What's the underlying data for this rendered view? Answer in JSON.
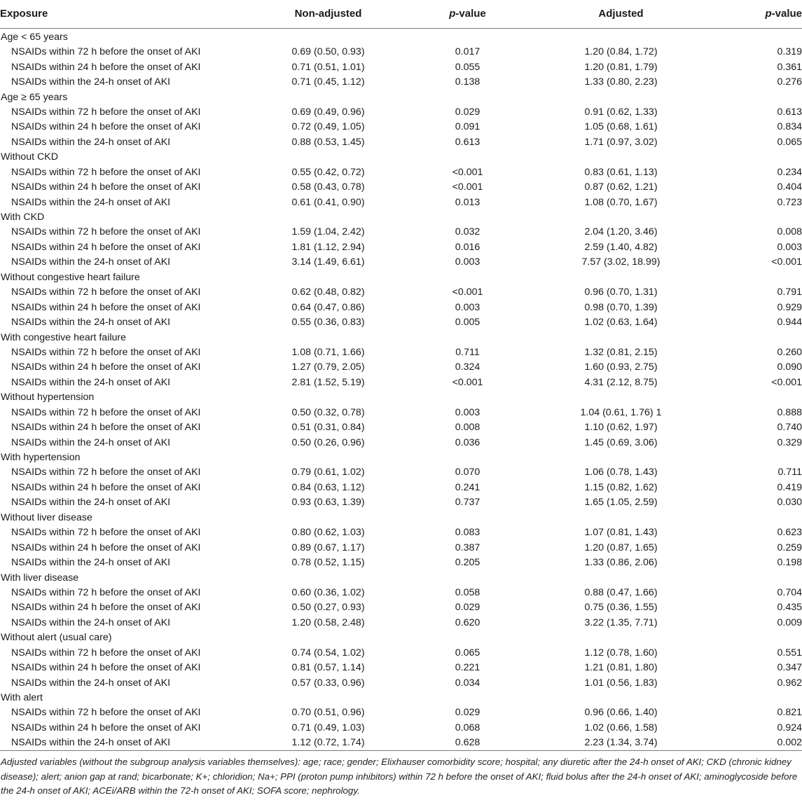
{
  "header": {
    "exposure": "Exposure",
    "non_adjusted": "Non-adjusted",
    "p_value_prefix": "p",
    "p_value_suffix": "-value",
    "adjusted": "Adjusted"
  },
  "groups": [
    {
      "label": "Age < 65 years",
      "rows": [
        {
          "exposure": "NSAIDs within 72 h before the onset of AKI",
          "non_adjusted": "0.69 (0.50, 0.93)",
          "p1": "0.017",
          "adjusted": "1.20 (0.84, 1.72)",
          "p2": "0.319"
        },
        {
          "exposure": "NSAIDs within 24 h before the onset of AKI",
          "non_adjusted": "0.71 (0.51, 1.01)",
          "p1": "0.055",
          "adjusted": "1.20 (0.81, 1.79)",
          "p2": "0.361"
        },
        {
          "exposure": "NSAIDs within the 24-h onset of AKI",
          "non_adjusted": "0.71 (0.45, 1.12)",
          "p1": "0.138",
          "adjusted": "1.33 (0.80, 2.23)",
          "p2": "0.276"
        }
      ]
    },
    {
      "label": "Age ≥ 65 years",
      "rows": [
        {
          "exposure": "NSAIDs within 72 h before the onset of AKI",
          "non_adjusted": "0.69 (0.49, 0.96)",
          "p1": "0.029",
          "adjusted": "0.91 (0.62, 1.33)",
          "p2": "0.613"
        },
        {
          "exposure": "NSAIDs within 24 h before the onset of AKI",
          "non_adjusted": "0.72 (0.49, 1.05)",
          "p1": "0.091",
          "adjusted": "1.05 (0.68, 1.61)",
          "p2": "0.834"
        },
        {
          "exposure": "NSAIDs within the 24-h onset of AKI",
          "non_adjusted": "0.88 (0.53, 1.45)",
          "p1": "0.613",
          "adjusted": "1.71 (0.97, 3.02)",
          "p2": "0.065"
        }
      ]
    },
    {
      "label": "Without CKD",
      "rows": [
        {
          "exposure": "NSAIDs within 72 h before the onset of AKI",
          "non_adjusted": "0.55 (0.42, 0.72)",
          "p1": "<0.001",
          "adjusted": "0.83 (0.61, 1.13)",
          "p2": "0.234"
        },
        {
          "exposure": "NSAIDs within 24 h before the onset of AKI",
          "non_adjusted": "0.58 (0.43, 0.78)",
          "p1": "<0.001",
          "adjusted": "0.87 (0.62, 1.21)",
          "p2": "0.404"
        },
        {
          "exposure": "NSAIDs within the 24-h onset of AKI",
          "non_adjusted": "0.61 (0.41, 0.90)",
          "p1": "0.013",
          "adjusted": "1.08 (0.70, 1.67)",
          "p2": "0.723"
        }
      ]
    },
    {
      "label": "With CKD",
      "rows": [
        {
          "exposure": "NSAIDs within 72 h before the onset of AKI",
          "non_adjusted": "1.59 (1.04, 2.42)",
          "p1": "0.032",
          "adjusted": "2.04 (1.20, 3.46)",
          "p2": "0.008"
        },
        {
          "exposure": "NSAIDs within 24 h before the onset of AKI",
          "non_adjusted": "1.81 (1.12, 2.94)",
          "p1": "0.016",
          "adjusted": "2.59 (1.40, 4.82)",
          "p2": "0.003"
        },
        {
          "exposure": "NSAIDs within the 24-h onset of AKI",
          "non_adjusted": "3.14 (1.49, 6.61)",
          "p1": "0.003",
          "adjusted": "7.57 (3.02, 18.99)",
          "p2": "<0.001"
        }
      ]
    },
    {
      "label": "Without congestive heart failure",
      "rows": [
        {
          "exposure": "NSAIDs within 72 h before the onset of AKI",
          "non_adjusted": "0.62 (0.48, 0.82)",
          "p1": "<0.001",
          "adjusted": "0.96 (0.70, 1.31)",
          "p2": "0.791"
        },
        {
          "exposure": "NSAIDs within 24 h before the onset of AKI",
          "non_adjusted": "0.64 (0.47, 0.86)",
          "p1": "0.003",
          "adjusted": "0.98 (0.70, 1.39)",
          "p2": "0.929"
        },
        {
          "exposure": "NSAIDs within the 24-h onset of AKI",
          "non_adjusted": "0.55 (0.36, 0.83)",
          "p1": "0.005",
          "adjusted": "1.02 (0.63, 1.64)",
          "p2": "0.944"
        }
      ]
    },
    {
      "label": "With congestive heart failure",
      "rows": [
        {
          "exposure": "NSAIDs within 72 h before the onset of AKI",
          "non_adjusted": "1.08 (0.71, 1.66)",
          "p1": "0.711",
          "adjusted": "1.32 (0.81, 2.15)",
          "p2": "0.260"
        },
        {
          "exposure": "NSAIDs within 24 h before the onset of AKI",
          "non_adjusted": "1.27 (0.79, 2.05)",
          "p1": "0.324",
          "adjusted": "1.60 (0.93, 2.75)",
          "p2": "0.090"
        },
        {
          "exposure": "NSAIDs within the 24-h onset of AKI",
          "non_adjusted": "2.81 (1.52, 5.19)",
          "p1": "<0.001",
          "adjusted": "4.31 (2.12, 8.75)",
          "p2": "<0.001"
        }
      ]
    },
    {
      "label": "Without hypertension",
      "rows": [
        {
          "exposure": "NSAIDs within 72 h before the onset of AKI",
          "non_adjusted": "0.50 (0.32, 0.78)",
          "p1": "0.003",
          "adjusted": "1.04 (0.61, 1.76) 1",
          "p2": "0.888"
        },
        {
          "exposure": "NSAIDs within 24 h before the onset of AKI",
          "non_adjusted": "0.51 (0.31, 0.84)",
          "p1": "0.008",
          "adjusted": "1.10 (0.62, 1.97)",
          "p2": "0.740"
        },
        {
          "exposure": "NSAIDs within the 24-h onset of AKI",
          "non_adjusted": "0.50 (0.26, 0.96)",
          "p1": "0.036",
          "adjusted": "1.45 (0.69, 3.06)",
          "p2": "0.329"
        }
      ]
    },
    {
      "label": "With hypertension",
      "rows": [
        {
          "exposure": "NSAIDs within 72 h before the onset of AKI",
          "non_adjusted": "0.79 (0.61, 1.02)",
          "p1": "0.070",
          "adjusted": "1.06 (0.78, 1.43)",
          "p2": "0.711"
        },
        {
          "exposure": "NSAIDs within 24 h before the onset of AKI",
          "non_adjusted": "0.84 (0.63, 1.12)",
          "p1": "0.241",
          "adjusted": "1.15 (0.82, 1.62)",
          "p2": "0.419"
        },
        {
          "exposure": "NSAIDs within the 24-h onset of AKI",
          "non_adjusted": "0.93 (0.63, 1.39)",
          "p1": "0.737",
          "adjusted": "1.65 (1.05, 2.59)",
          "p2": "0.030"
        }
      ]
    },
    {
      "label": "Without liver disease",
      "rows": [
        {
          "exposure": "NSAIDs within 72 h before the onset of AKI",
          "non_adjusted": "0.80 (0.62, 1.03)",
          "p1": "0.083",
          "adjusted": "1.07 (0.81, 1.43)",
          "p2": "0.623"
        },
        {
          "exposure": "NSAIDs within 24 h before the onset of AKI",
          "non_adjusted": "0.89 (0.67, 1.17)",
          "p1": "0.387",
          "adjusted": "1.20 (0.87, 1.65)",
          "p2": "0.259"
        },
        {
          "exposure": "NSAIDs within the 24-h onset of AKI",
          "non_adjusted": "0.78 (0.52, 1.15)",
          "p1": "0.205",
          "adjusted": "1.33 (0.86, 2.06)",
          "p2": "0.198"
        }
      ]
    },
    {
      "label": "With liver disease",
      "rows": [
        {
          "exposure": "NSAIDs within 72 h before the onset of AKI",
          "non_adjusted": "0.60 (0.36, 1.02)",
          "p1": "0.058",
          "adjusted": "0.88 (0.47, 1.66)",
          "p2": "0.704"
        },
        {
          "exposure": "NSAIDs within 24 h before the onset of AKI",
          "non_adjusted": "0.50 (0.27, 0.93)",
          "p1": "0.029",
          "adjusted": "0.75 (0.36, 1.55)",
          "p2": "0.435"
        },
        {
          "exposure": "NSAIDs within the 24-h onset of AKI",
          "non_adjusted": "1.20 (0.58, 2.48)",
          "p1": "0.620",
          "adjusted": "3.22 (1.35, 7.71)",
          "p2": "0.009"
        }
      ]
    },
    {
      "label": "Without alert (usual care)",
      "rows": [
        {
          "exposure": "NSAIDs within 72 h before the onset of AKI",
          "non_adjusted": "0.74 (0.54, 1.02)",
          "p1": "0.065",
          "adjusted": "1.12 (0.78, 1.60)",
          "p2": "0.551"
        },
        {
          "exposure": "NSAIDs within 24 h before the onset of AKI",
          "non_adjusted": "0.81 (0.57, 1.14)",
          "p1": "0.221",
          "adjusted": "1.21 (0.81, 1.80)",
          "p2": "0.347"
        },
        {
          "exposure": "NSAIDs within the 24-h onset of AKI",
          "non_adjusted": "0.57 (0.33, 0.96)",
          "p1": "0.034",
          "adjusted": "1.01 (0.56, 1.83)",
          "p2": "0.962"
        }
      ]
    },
    {
      "label": "With alert",
      "rows": [
        {
          "exposure": "NSAIDs within 72 h before the onset of AKI",
          "non_adjusted": "0.70 (0.51, 0.96)",
          "p1": "0.029",
          "adjusted": "0.96 (0.66, 1.40)",
          "p2": "0.821"
        },
        {
          "exposure": "NSAIDs within 24 h before the onset of AKI",
          "non_adjusted": "0.71 (0.49, 1.03)",
          "p1": "0.068",
          "adjusted": "1.02 (0.66, 1.58)",
          "p2": "0.924"
        },
        {
          "exposure": "NSAIDs within the 24-h onset of AKI",
          "non_adjusted": "1.12 (0.72, 1.74)",
          "p1": "0.628",
          "adjusted": "2.23 (1.34, 3.74)",
          "p2": "0.002"
        }
      ]
    }
  ],
  "footnote": "Adjusted variables (without the subgroup analysis variables themselves): age; race; gender; Elixhauser comorbidity score; hospital; any diuretic after the 24-h onset of AKI; CKD (chronic kidney disease); alert; anion gap at rand; bicarbonate; K+; chloridion; Na+; PPI (proton pump inhibitors) within 72 h before the onset of AKI; fluid bolus after the 24-h onset of AKI; aminoglycoside before the 24-h onset of AKI; ACEi/ARB within the 72-h onset of AKI; SOFA score; nephrology."
}
